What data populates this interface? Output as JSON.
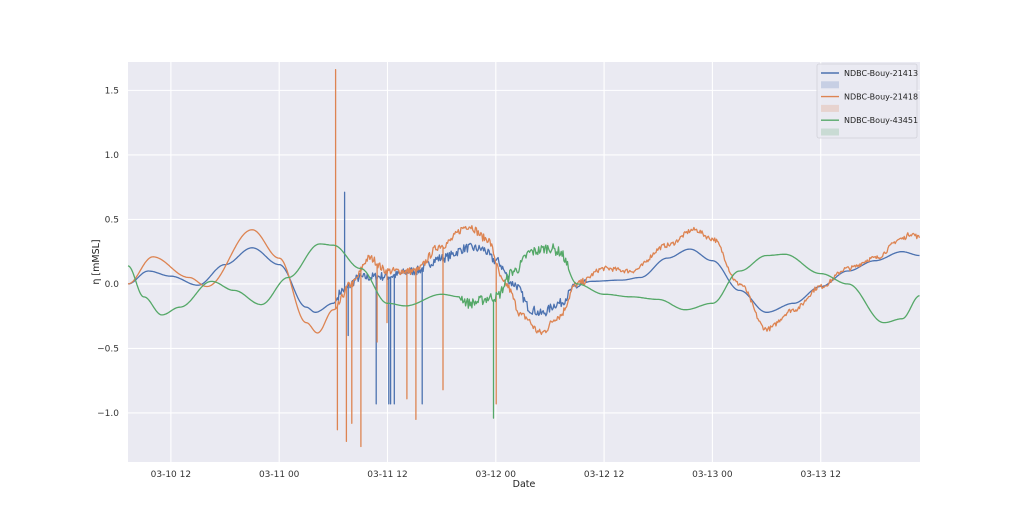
{
  "chart_data": {
    "type": "line",
    "title": "",
    "xlabel": "Date",
    "ylabel": "η [mMSL]",
    "xlim": [
      "03-10 07:15",
      "03-13 23:00"
    ],
    "ylim": [
      -1.38,
      1.72
    ],
    "grid": true,
    "legend_placement": "top-right",
    "x_ticks": [
      "03-10 12",
      "03-11 00",
      "03-11 12",
      "03-12 00",
      "03-12 12",
      "03-13 00",
      "03-13 12"
    ],
    "y_ticks": [
      -1.0,
      -0.5,
      0.0,
      0.5,
      1.0,
      1.5
    ],
    "y_tick_labels": [
      "−1.0",
      "−0.5",
      "0.0",
      "0.5",
      "1.0",
      "1.5"
    ],
    "legend": [
      {
        "type": "line",
        "label": "NDBC-Bouy-21413",
        "color": "#4c72b0"
      },
      {
        "type": "patch",
        "label": "",
        "color": "#4c72b0"
      },
      {
        "type": "line",
        "label": "NDBC-Bouy-21418",
        "color": "#dd8452"
      },
      {
        "type": "patch",
        "label": "",
        "color": "#dd8452"
      },
      {
        "type": "line",
        "label": "NDBC-Bouy-43451",
        "color": "#55a868"
      },
      {
        "type": "patch",
        "label": "",
        "color": "#55a868"
      }
    ],
    "series": [
      {
        "name": "NDBC-Bouy-21413",
        "color": "#4c72b0",
        "points": [
          [
            "03-10 07:15",
            0.0
          ],
          [
            "03-10 09:30",
            0.1
          ],
          [
            "03-10 12:00",
            0.06
          ],
          [
            "03-10 15:00",
            -0.01
          ],
          [
            "03-10 18:00",
            0.15
          ],
          [
            "03-10 21:00",
            0.28
          ],
          [
            "03-11 00:00",
            0.15
          ],
          [
            "03-11 03:00",
            -0.18
          ],
          [
            "03-11 04:00",
            -0.22
          ],
          [
            "03-11 06:00",
            -0.15
          ],
          [
            "03-11 07:00",
            -0.05
          ],
          [
            "03-11 09:00",
            0.05
          ],
          [
            "03-11 12:00",
            0.06
          ],
          [
            "03-11 15:00",
            0.1
          ],
          [
            "03-11 18:00",
            0.2
          ],
          [
            "03-11 21:00",
            0.28
          ],
          [
            "03-11 22:30",
            0.27
          ],
          [
            "03-12 00:00",
            0.18
          ],
          [
            "03-12 02:00",
            0.0
          ],
          [
            "03-12 04:00",
            -0.2
          ],
          [
            "03-12 05:00",
            -0.23
          ],
          [
            "03-12 07:00",
            -0.15
          ],
          [
            "03-12 09:00",
            -0.02
          ],
          [
            "03-12 10:30",
            0.02
          ],
          [
            "03-12 14:00",
            0.03
          ],
          [
            "03-12 16:00",
            0.05
          ],
          [
            "03-12 19:00",
            0.2
          ],
          [
            "03-12 21:30",
            0.27
          ],
          [
            "03-13 00:00",
            0.18
          ],
          [
            "03-13 03:00",
            -0.05
          ],
          [
            "03-13 06:00",
            -0.22
          ],
          [
            "03-13 09:00",
            -0.15
          ],
          [
            "03-13 12:00",
            -0.02
          ],
          [
            "03-13 15:00",
            0.1
          ],
          [
            "03-13 18:00",
            0.18
          ],
          [
            "03-13 21:00",
            0.25
          ],
          [
            "03-13 23:00",
            0.22
          ]
        ],
        "spikes": [
          [
            "03-11 07:18",
            0.71
          ],
          [
            "03-11 07:40",
            -0.4
          ],
          [
            "03-11 10:48",
            -0.93
          ],
          [
            "03-11 12:12",
            -0.93
          ],
          [
            "03-11 12:24",
            -0.93
          ],
          [
            "03-11 12:48",
            -0.93
          ],
          [
            "03-11 15:54",
            -0.93
          ]
        ]
      },
      {
        "name": "NDBC-Bouy-21418",
        "color": "#dd8452",
        "points": [
          [
            "03-10 07:15",
            0.0
          ],
          [
            "03-10 10:00",
            0.21
          ],
          [
            "03-10 14:00",
            0.05
          ],
          [
            "03-10 16:00",
            -0.02
          ],
          [
            "03-10 21:00",
            0.42
          ],
          [
            "03-11 00:00",
            0.2
          ],
          [
            "03-11 03:00",
            -0.3
          ],
          [
            "03-11 04:15",
            -0.38
          ],
          [
            "03-11 06:00",
            -0.2
          ],
          [
            "03-11 08:00",
            0.0
          ],
          [
            "03-11 10:00",
            0.2
          ],
          [
            "03-11 12:00",
            0.1
          ],
          [
            "03-11 15:00",
            0.1
          ],
          [
            "03-11 18:00",
            0.3
          ],
          [
            "03-11 21:00",
            0.45
          ],
          [
            "03-11 23:00",
            0.35
          ],
          [
            "03-12 01:00",
            0.0
          ],
          [
            "03-12 03:00",
            -0.25
          ],
          [
            "03-12 05:00",
            -0.38
          ],
          [
            "03-12 07:00",
            -0.25
          ],
          [
            "03-12 09:00",
            0.0
          ],
          [
            "03-12 12:00",
            0.12
          ],
          [
            "03-12 15:00",
            0.1
          ],
          [
            "03-12 19:00",
            0.3
          ],
          [
            "03-12 22:00",
            0.42
          ],
          [
            "03-13 00:00",
            0.35
          ],
          [
            "03-13 03:00",
            0.0
          ],
          [
            "03-13 06:00",
            -0.35
          ],
          [
            "03-13 09:00",
            -0.2
          ],
          [
            "03-13 12:00",
            -0.02
          ],
          [
            "03-13 15:00",
            0.12
          ],
          [
            "03-13 18:00",
            0.2
          ],
          [
            "03-13 21:00",
            0.35
          ],
          [
            "03-13 22:00",
            0.39
          ],
          [
            "03-13 23:00",
            0.36
          ]
        ],
        "spikes": [
          [
            "03-11 06:18",
            1.66
          ],
          [
            "03-11 06:30",
            -1.13
          ],
          [
            "03-11 07:30",
            -1.22
          ],
          [
            "03-11 08:06",
            -1.08
          ],
          [
            "03-11 09:06",
            -1.26
          ],
          [
            "03-11 10:54",
            -0.45
          ],
          [
            "03-11 12:00",
            -0.3
          ],
          [
            "03-11 14:12",
            -0.89
          ],
          [
            "03-11 15:12",
            -1.05
          ],
          [
            "03-11 18:12",
            -0.82
          ],
          [
            "03-12 00:06",
            -0.93
          ]
        ]
      },
      {
        "name": "NDBC-Bouy-43451",
        "color": "#55a868",
        "points": [
          [
            "03-10 07:15",
            0.14
          ],
          [
            "03-10 09:00",
            -0.1
          ],
          [
            "03-10 11:00",
            -0.24
          ],
          [
            "03-10 13:00",
            -0.18
          ],
          [
            "03-10 16:30",
            0.02
          ],
          [
            "03-10 19:00",
            -0.05
          ],
          [
            "03-10 22:00",
            -0.16
          ],
          [
            "03-11 01:00",
            0.05
          ],
          [
            "03-11 04:30",
            0.31
          ],
          [
            "03-11 06:00",
            0.3
          ],
          [
            "03-11 09:00",
            0.12
          ],
          [
            "03-11 12:00",
            -0.15
          ],
          [
            "03-11 14:00",
            -0.17
          ],
          [
            "03-11 18:00",
            -0.08
          ],
          [
            "03-11 20:00",
            -0.1
          ],
          [
            "03-11 21:00",
            -0.15
          ],
          [
            "03-12 00:00",
            -0.1
          ],
          [
            "03-12 02:00",
            0.1
          ],
          [
            "03-12 04:00",
            0.25
          ],
          [
            "03-12 06:00",
            0.28
          ],
          [
            "03-12 07:00",
            0.25
          ],
          [
            "03-12 09:00",
            0.0
          ],
          [
            "03-12 12:00",
            -0.08
          ],
          [
            "03-12 15:00",
            -0.1
          ],
          [
            "03-12 18:00",
            -0.12
          ],
          [
            "03-12 21:00",
            -0.2
          ],
          [
            "03-13 00:00",
            -0.15
          ],
          [
            "03-13 03:00",
            0.1
          ],
          [
            "03-13 06:00",
            0.22
          ],
          [
            "03-13 08:00",
            0.23
          ],
          [
            "03-13 12:00",
            0.08
          ],
          [
            "03-13 15:00",
            0.0
          ],
          [
            "03-13 19:00",
            -0.3
          ],
          [
            "03-13 21:00",
            -0.27
          ],
          [
            "03-13 23:00",
            -0.09
          ]
        ],
        "spikes": [
          [
            "03-11 23:48",
            -1.04
          ]
        ]
      }
    ]
  }
}
